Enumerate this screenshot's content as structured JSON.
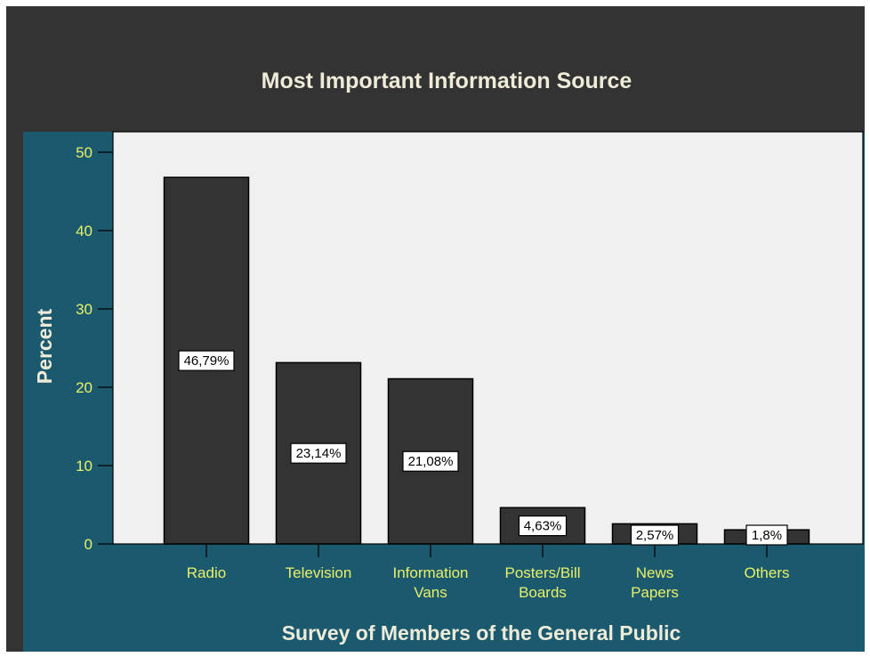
{
  "chart_data": {
    "type": "bar",
    "title": "Most Important Information Source",
    "xlabel": "Survey of Members of the General Public",
    "ylabel": "Percent",
    "categories": [
      [
        "Radio"
      ],
      [
        "Television"
      ],
      [
        "Information",
        "Vans"
      ],
      [
        "Posters/Bill",
        "Boards"
      ],
      [
        "News",
        "Papers"
      ],
      [
        "Others"
      ]
    ],
    "values": [
      46.79,
      23.14,
      21.08,
      4.63,
      2.57,
      1.8
    ],
    "data_labels": [
      "46,79%",
      "23,14%",
      "21,08%",
      "4,63%",
      "2,57%",
      "1,8%"
    ],
    "ylim": [
      0,
      50
    ],
    "yticks": [
      "0",
      "10",
      "20",
      "30",
      "40",
      "50"
    ],
    "grid": false,
    "legend": "none",
    "colors": {
      "background": "#333333",
      "axis_area": "#1b5a6e",
      "plot_area": "#f0f0f0",
      "bar_fill": "#333333",
      "tick_text": "#e8f068",
      "title_text": "#eeebd9"
    }
  }
}
